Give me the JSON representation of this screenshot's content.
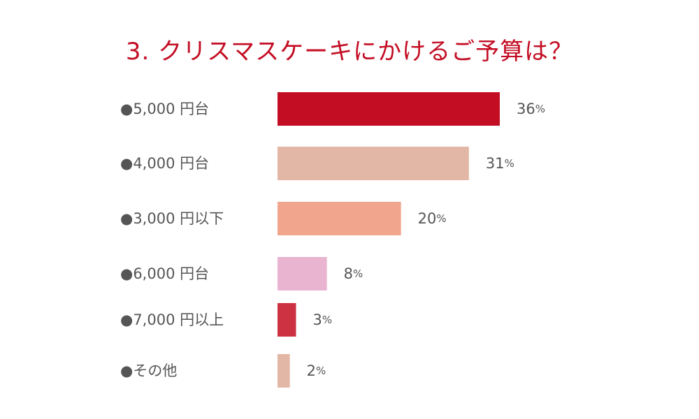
{
  "chart_data": {
    "type": "bar",
    "orientation": "horizontal",
    "title": "3. クリスマスケーキにかけるご予算は？",
    "categories": [
      "●5,000 円台",
      "●4,000 円台",
      "●3,000 円以下",
      "●6,000 円台",
      "●7,000 円以上",
      "●その他"
    ],
    "values": [
      36,
      31,
      20,
      8,
      3,
      2
    ],
    "unit": "%",
    "colors": [
      "#c30d23",
      "#e3b7a6",
      "#f2a58d",
      "#e8b4cf",
      "#cd3242",
      "#e3b7a6"
    ],
    "grid": false,
    "legend": "none"
  }
}
